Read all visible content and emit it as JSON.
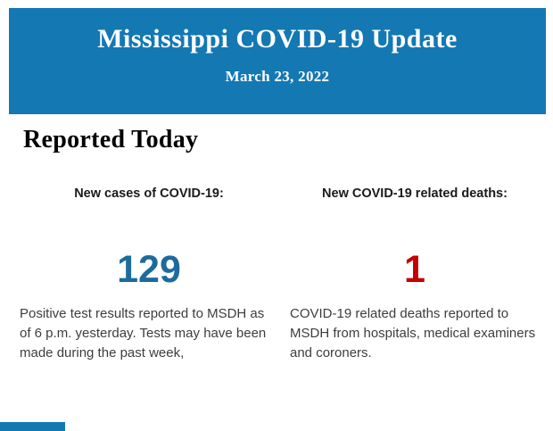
{
  "colors": {
    "header_bg": "#1478b3",
    "cases_value": "#1d6b9d",
    "deaths_value": "#c40000"
  },
  "header": {
    "title": "Mississippi COVID-19 Update",
    "date": "March 23, 2022"
  },
  "section": {
    "heading": "Reported Today"
  },
  "stats": {
    "cases": {
      "label": "New cases of COVID-19:",
      "value": "129",
      "description": "Positive test results reported to MSDH as of 6 p.m. yesterday. Tests may have been made during the past week,"
    },
    "deaths": {
      "label": "New COVID-19 related deaths:",
      "value": "1",
      "description": "COVID-19 related deaths reported to MSDH from hospitals, medical examiners and coroners."
    }
  }
}
